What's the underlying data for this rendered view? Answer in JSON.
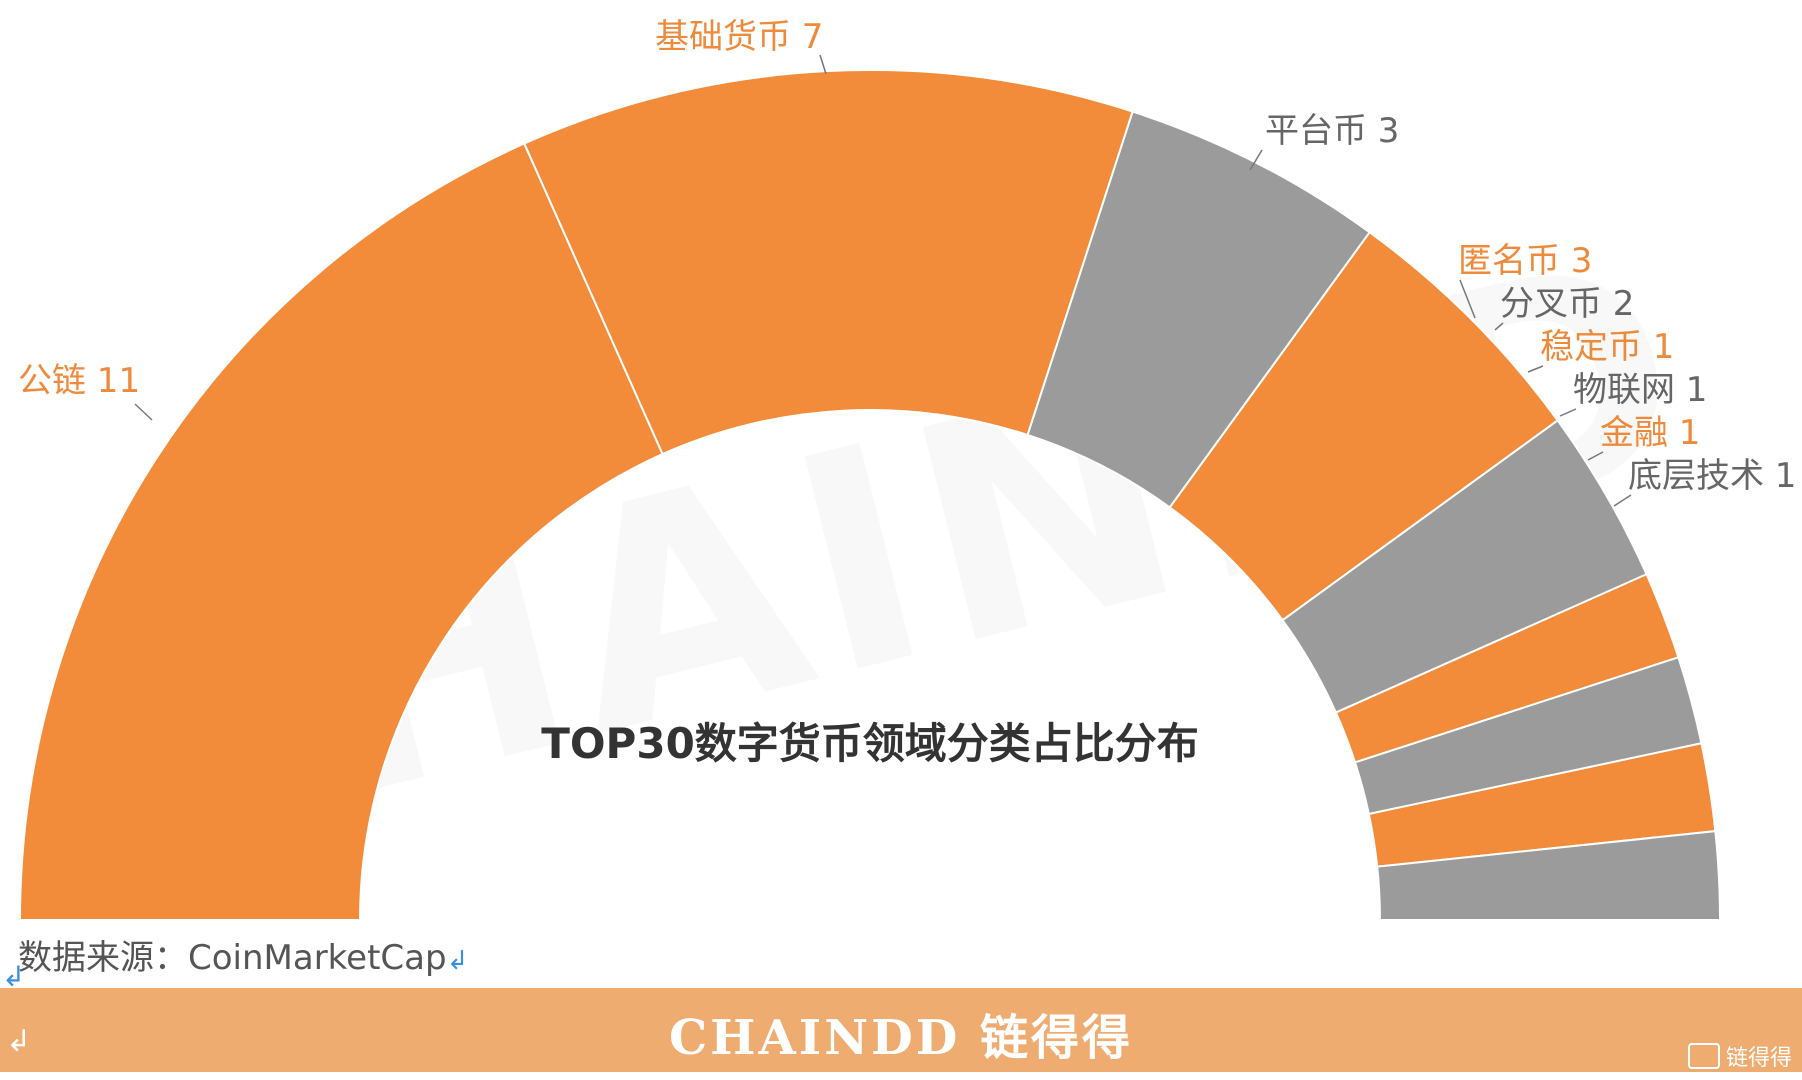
{
  "chart_data": {
    "type": "pie",
    "title": "TOP30数字货币领域分类占比分布",
    "categories": [
      "公链",
      "基础货币",
      "平台币",
      "匿名币",
      "分叉币",
      "稳定币",
      "物联网",
      "金融",
      "底层技术"
    ],
    "values": [
      11,
      7,
      3,
      3,
      2,
      1,
      1,
      1,
      1
    ],
    "labels": [
      "公链 11",
      "基础货币 7",
      "平台币 3",
      "匿名币 3",
      "分叉币 2",
      "稳定币 1",
      "物联网 1",
      "金融 1",
      "底层技术 1"
    ],
    "colors": [
      "#f28b3a",
      "#f28b3a",
      "#9b9b9b",
      "#f28b3a",
      "#9b9b9b",
      "#f28b3a",
      "#9b9b9b",
      "#f28b3a",
      "#9b9b9b"
    ],
    "label_colors": [
      "#ee8a3c",
      "#ee8a3c",
      "#666666",
      "#ee8a3c",
      "#666666",
      "#ee8a3c",
      "#666666",
      "#ee8a3c",
      "#666666"
    ],
    "style": "half-donut"
  },
  "source": {
    "text": "数据来源：CoinMarketCap",
    "return_mark": "↲"
  },
  "footer": {
    "logo": "CHAINDD 链得得",
    "corner_logo": "链得得",
    "corner_sub": "CHAINDD",
    "return_mark": "↲"
  },
  "watermark": "CHAINDD"
}
